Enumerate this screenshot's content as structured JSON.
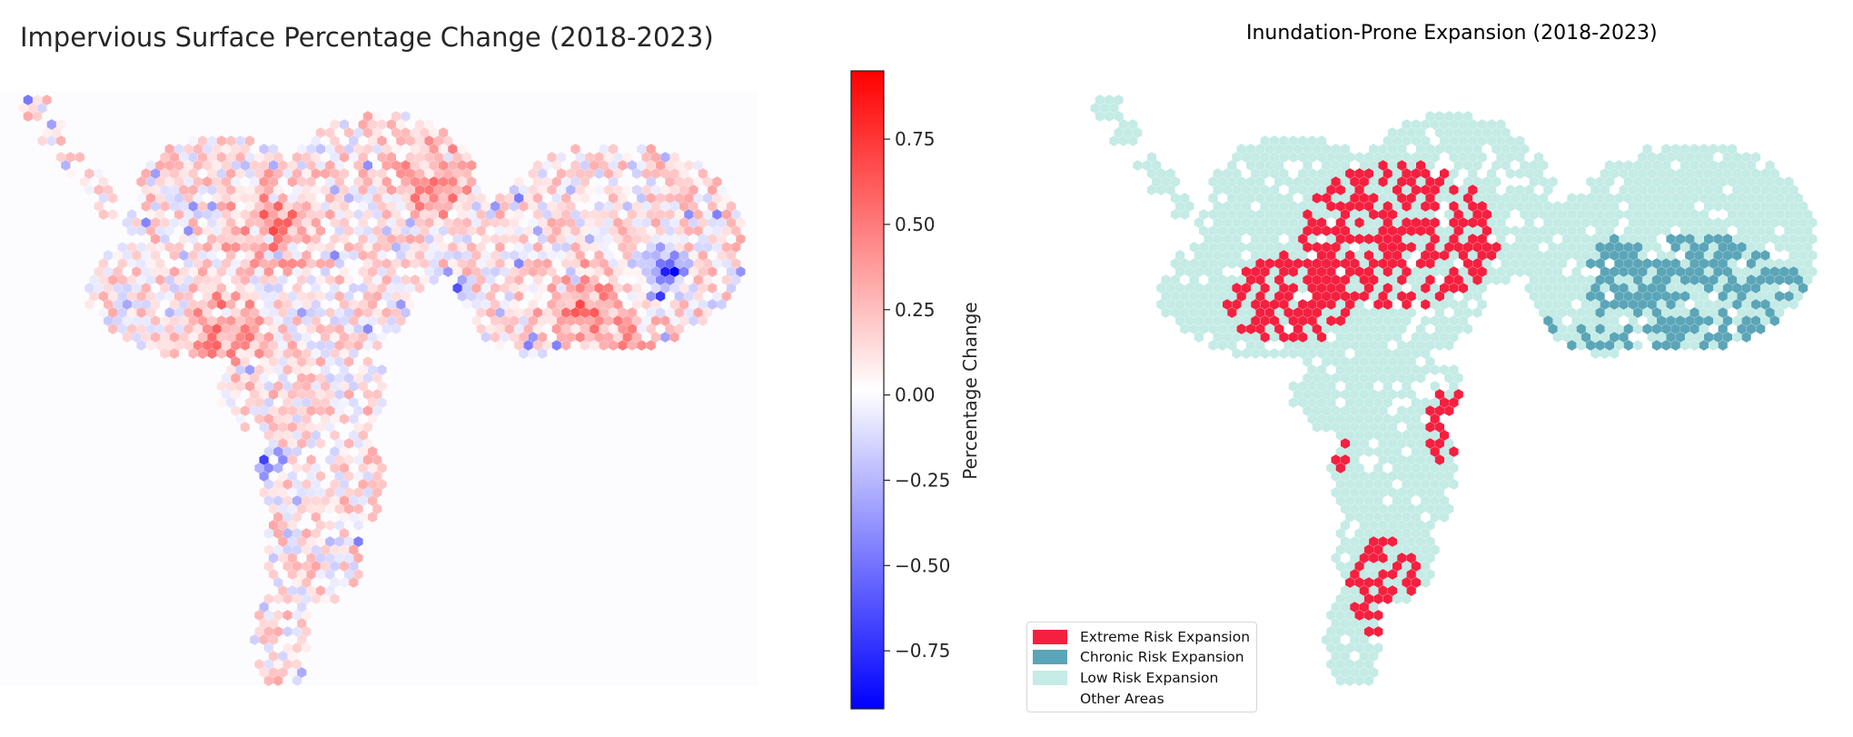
{
  "maps": [
    {
      "title": "Impervious Surface Percentage Change (2018-2023)",
      "type": "hexbin-choropleth",
      "colormap": "bwr",
      "colorbar": {
        "label": "Percentage Change",
        "range": [
          -0.92,
          0.95
        ],
        "ticks": [
          "0.75",
          "0.50",
          "0.25",
          "0.00",
          "−0.25",
          "−0.50",
          "−0.75"
        ],
        "tick_values": [
          0.75,
          0.5,
          0.25,
          0.0,
          -0.25,
          -0.5,
          -0.75
        ],
        "colors": {
          "low": "#0000ff",
          "mid": "#ffffff",
          "high": "#ff0000"
        }
      }
    },
    {
      "title": "Inundation-Prone Expansion (2018-2023)",
      "type": "hexbin-categorical",
      "legend": {
        "placement": "lower-left",
        "items": [
          {
            "label": "Extreme Risk Expansion",
            "color": "#f5203f"
          },
          {
            "label": "Chronic Risk Expansion",
            "color": "#5ba5b8"
          },
          {
            "label": "Low Risk Expansion",
            "color": "#c4ebe5"
          },
          {
            "label": "Other Areas",
            "color": "#ffffff"
          }
        ]
      }
    }
  ]
}
